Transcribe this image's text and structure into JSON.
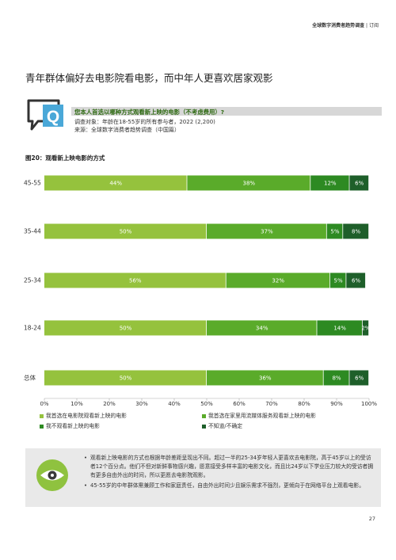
{
  "header": {
    "report": "全球数字消费者趋势调查",
    "separator": "|",
    "edition": "订阅"
  },
  "headline": "青年群体偏好去电影院看电影，而中年人更喜欢居家观影",
  "question": {
    "icon_letter": "Q",
    "title": "您本人首选以哪种方式观看新上映的电影（不考虑费用）?",
    "respondents": "调查对象：年龄在18-55岁的所有参与者，2022 (2,200)",
    "source": "来源：全球数字消费者趋势调查（中国篇）"
  },
  "figure_title": "图20：观看新上映电影的方式",
  "colors": {
    "s1": "#95c23d",
    "s2": "#5aab2a",
    "s3": "#2d8a22",
    "s4": "#1e5f2a",
    "dark_green": "#2e6a12"
  },
  "chart_data": {
    "type": "bar",
    "orientation": "horizontal",
    "stacked": true,
    "categories": [
      "45-55",
      "35-44",
      "25-34",
      "18-24",
      "总体"
    ],
    "series": [
      {
        "name": "我首选在电影院观看新上映的电影",
        "values": [
          44,
          50,
          56,
          50,
          50
        ],
        "labels": [
          "44%",
          "50%",
          "56%",
          "50%",
          "50%"
        ]
      },
      {
        "name": "我首选在家里用流媒体服务观看新上映的电影",
        "values": [
          38,
          37,
          32,
          34,
          36
        ],
        "labels": [
          "38%",
          "37%",
          "32%",
          "34%",
          "36%"
        ]
      },
      {
        "name": "我不观看新上映的电影",
        "values": [
          12,
          5,
          5,
          14,
          8
        ],
        "labels": [
          "12%",
          "5%",
          "5%",
          "14%",
          "8%"
        ]
      },
      {
        "name": "不知道/不确定",
        "values": [
          6,
          8,
          6,
          2,
          6
        ],
        "labels": [
          "6%",
          "8%",
          "6%",
          "2%",
          "6%"
        ]
      }
    ],
    "xlim": [
      0,
      100
    ],
    "x_ticks": [
      "0%",
      "10%",
      "20%",
      "30%",
      "40%",
      "50%",
      "60%",
      "70%",
      "80%",
      "90%",
      "100%"
    ],
    "legend_position": "bottom"
  },
  "insights": [
    "观看新上映电影的方式也根据年龄差距呈现出不同。超过一半的25-34岁年轻人更喜欢去电影院，高于45岁以上的受访者12个百分点。他们不但对新鲜事物感兴趣，愿意接受多样丰富的电影文化，而且比24岁以下学业压力较大的受访者拥有更多自由外出的时间，所以更愿去电影院观影。",
    "45-55岁的中年群体需兼顾工作和家庭责任，自由外出时间少且娱乐需求不强烈，更倾向于在网络平台上观看电影。"
  ],
  "page_number": "27"
}
